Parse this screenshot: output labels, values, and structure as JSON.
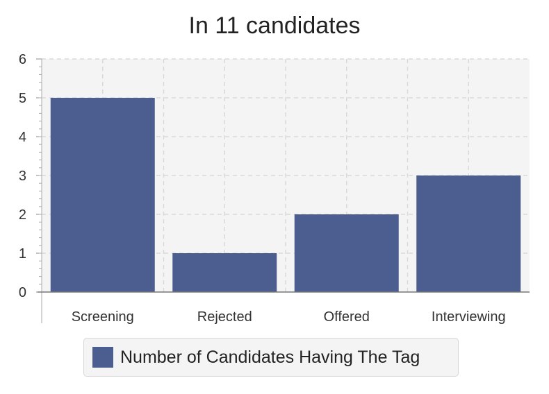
{
  "chart_data": {
    "type": "bar",
    "title": "In 11 candidates",
    "xlabel": "",
    "ylabel": "",
    "categories": [
      "Screening",
      "Rejected",
      "Offered",
      "Interviewing"
    ],
    "series": [
      {
        "name": "Number of Candidates Having The Tag",
        "values": [
          5,
          1,
          2,
          3
        ]
      }
    ],
    "ylim": [
      0,
      6
    ],
    "yticks": [
      "0",
      "1",
      "2",
      "3",
      "4",
      "5",
      "6"
    ],
    "grid": true,
    "legend_position": "bottom",
    "colors": {
      "bar": "#4b5e8f",
      "plot_background": "#f4f4f4",
      "grid": "#d9d9d9"
    }
  }
}
